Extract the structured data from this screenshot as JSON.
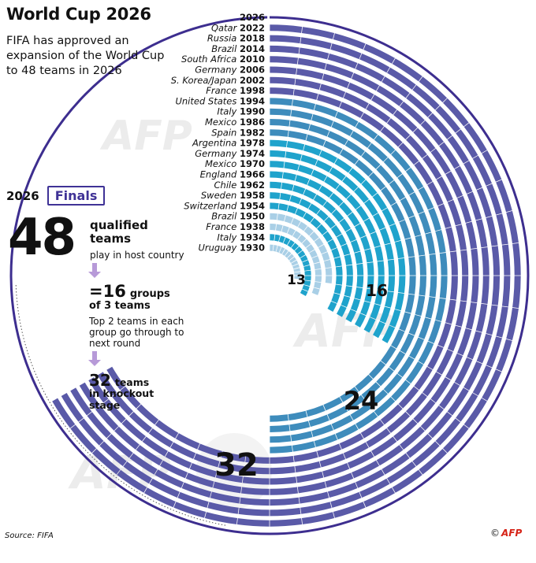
{
  "title": "World Cup 2026",
  "subtitle": "FIFA has approved an expansion of the World Cup to 48 teams in 2026",
  "finals": {
    "year": "2026",
    "tag": "Finals",
    "teams_number": "48",
    "teams_label": "qualified teams",
    "teams_sub": "play in host country",
    "groups_number": "=16",
    "groups_label": "groups",
    "groups_sub": "of 3 teams",
    "groups_note": "Top 2 teams in each group go through to next round",
    "knockout_number": "32",
    "knockout_label": "teams",
    "knockout_sub": "in knockout stage"
  },
  "source": "Source: FIFA",
  "credit": {
    "symbol": "©",
    "agency": "AFP"
  },
  "watermark": "AFP",
  "chart_data": {
    "type": "radial-bar",
    "title": "World Cup 2026",
    "unit": "teams in finals",
    "series": [
      {
        "host": "",
        "year": "2026",
        "teams": 48
      },
      {
        "host": "Qatar",
        "year": "2022",
        "teams": 32
      },
      {
        "host": "Russia",
        "year": "2018",
        "teams": 32
      },
      {
        "host": "Brazil",
        "year": "2014",
        "teams": 32
      },
      {
        "host": "South Africa",
        "year": "2010",
        "teams": 32
      },
      {
        "host": "Germany",
        "year": "2006",
        "teams": 32
      },
      {
        "host": "S. Korea/Japan",
        "year": "2002",
        "teams": 32
      },
      {
        "host": "France",
        "year": "1998",
        "teams": 32
      },
      {
        "host": "United States",
        "year": "1994",
        "teams": 24
      },
      {
        "host": "Italy",
        "year": "1990",
        "teams": 24
      },
      {
        "host": "Mexico",
        "year": "1986",
        "teams": 24
      },
      {
        "host": "Spain",
        "year": "1982",
        "teams": 24
      },
      {
        "host": "Argentina",
        "year": "1978",
        "teams": 16
      },
      {
        "host": "Germany",
        "year": "1974",
        "teams": 16
      },
      {
        "host": "Mexico",
        "year": "1970",
        "teams": 16
      },
      {
        "host": "England",
        "year": "1966",
        "teams": 16
      },
      {
        "host": "Chile",
        "year": "1962",
        "teams": 16
      },
      {
        "host": "Sweden",
        "year": "1958",
        "teams": 16
      },
      {
        "host": "Switzerland",
        "year": "1954",
        "teams": 16
      },
      {
        "host": "Brazil",
        "year": "1950",
        "teams": 13
      },
      {
        "host": "France",
        "year": "1938",
        "teams": 15
      },
      {
        "host": "Italy",
        "year": "1934",
        "teams": 16
      },
      {
        "host": "Uruguay",
        "year": "1930",
        "teams": 13
      }
    ],
    "annotations": [
      "13",
      "16",
      "24",
      "32"
    ],
    "colors": {
      "t48": "#3d2e8f",
      "t32": "#5a5aa8",
      "t24": "#3e8cbc",
      "t16": "#1fa3cc",
      "t13": "#a9cfe6",
      "t15": "#a9cfe6"
    }
  }
}
